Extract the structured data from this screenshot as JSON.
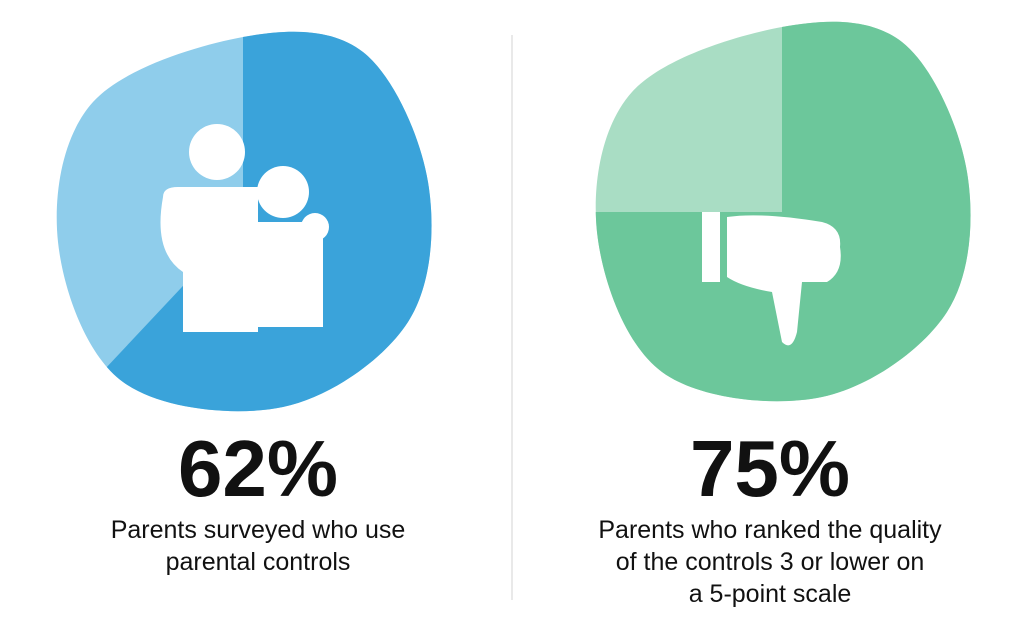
{
  "chart_data": [
    {
      "type": "pie",
      "values": [
        62
      ],
      "value_labels": [
        "62%"
      ],
      "color": "#3aa3da",
      "rest_color": "#8fcdeb",
      "caption": [
        "Parents surveyed who use",
        "parental controls"
      ]
    },
    {
      "type": "pie",
      "values": [
        75
      ],
      "value_labels": [
        "75%"
      ],
      "color": "#6cc79b",
      "rest_color": "#a9ddc4",
      "caption": [
        "Parents who ranked the quality",
        "of the controls 3 or lower on",
        "a 5-point scale"
      ]
    }
  ]
}
